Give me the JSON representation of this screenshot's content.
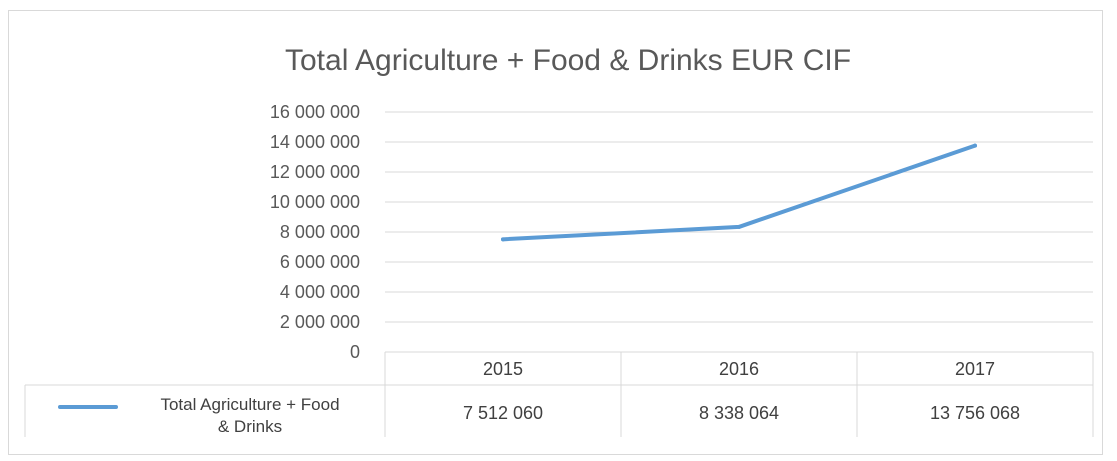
{
  "chart_data": {
    "type": "line",
    "title": "Total Agriculture + Food & Drinks EUR CIF",
    "categories": [
      "2015",
      "2016",
      "2017"
    ],
    "series": [
      {
        "name": "Total Agriculture + Food & Drinks",
        "values": [
          7512060,
          8338064,
          13756068
        ],
        "value_labels": [
          "7 512 060",
          "8 338 064",
          "13 756 068"
        ],
        "color": "#5b9bd5"
      }
    ],
    "y_ticks": [
      "0",
      "2 000 000",
      "4 000 000",
      "6 000 000",
      "8 000 000",
      "10 000 000",
      "12 000 000",
      "14 000 000",
      "16 000 000"
    ],
    "ylim": [
      0,
      16000000
    ],
    "grid": true,
    "data_table": true,
    "legend": "in data table",
    "gridline_color": "#d9d9d9",
    "text_color": "#595959"
  }
}
